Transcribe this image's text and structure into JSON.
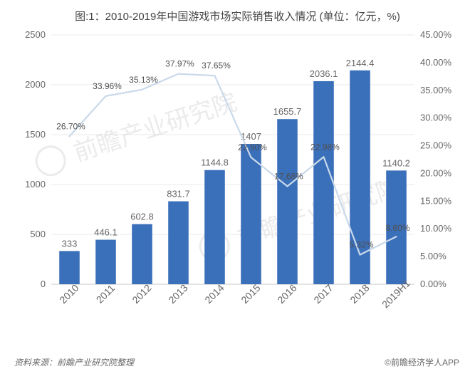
{
  "title": "图:1：2010-2019年中国游戏市场实际销售收入情况 (单位：亿元，%)",
  "source_left": "资料来源：前瞻产业研究院整理",
  "source_right": "©前瞻经济学人APP",
  "watermark_text": "前瞻产业研究院",
  "chart": {
    "type": "combo-bar-line",
    "categories": [
      "2010",
      "2011",
      "2012",
      "2013",
      "2014",
      "2015",
      "2016",
      "2017",
      "2018",
      "2019H1"
    ],
    "bar_values": [
      333,
      446.1,
      602.8,
      831.7,
      1144.8,
      1407,
      1655.7,
      2036.1,
      2144.4,
      1140.2
    ],
    "line_values": [
      26.7,
      33.96,
      35.13,
      37.97,
      37.65,
      22.9,
      17.68,
      22.98,
      5.32,
      8.6
    ],
    "line_labels": [
      "26.70%",
      "33.96%",
      "35.13%",
      "37.97%",
      "37.65%",
      "22.90%",
      "17.68%",
      "22.98%",
      "5.32%",
      "8.60%"
    ],
    "bar_color": "#3a6fba",
    "line_color": "#c9d9ea",
    "line_width": 2.2,
    "marker_style": "none",
    "background_color": "#ffffff",
    "grid_color": "#e9e9e9",
    "axis_color": "#cacaca",
    "text_color": "#666666",
    "y_left": {
      "lim": [
        0,
        2500
      ],
      "tick_step": 500,
      "ticks": [
        0,
        500,
        1000,
        1500,
        2000,
        2500
      ]
    },
    "y_right": {
      "lim": [
        0,
        45
      ],
      "tick_step": 5,
      "ticks": [
        "0.00%",
        "5.00%",
        "10.00%",
        "15.00%",
        "20.00%",
        "25.00%",
        "30.00%",
        "35.00%",
        "40.00%",
        "45.00%"
      ]
    },
    "bar_width_ratio": 0.56,
    "title_fontsize": 15,
    "label_fontsize": 13,
    "x_label_rotation": -45
  }
}
